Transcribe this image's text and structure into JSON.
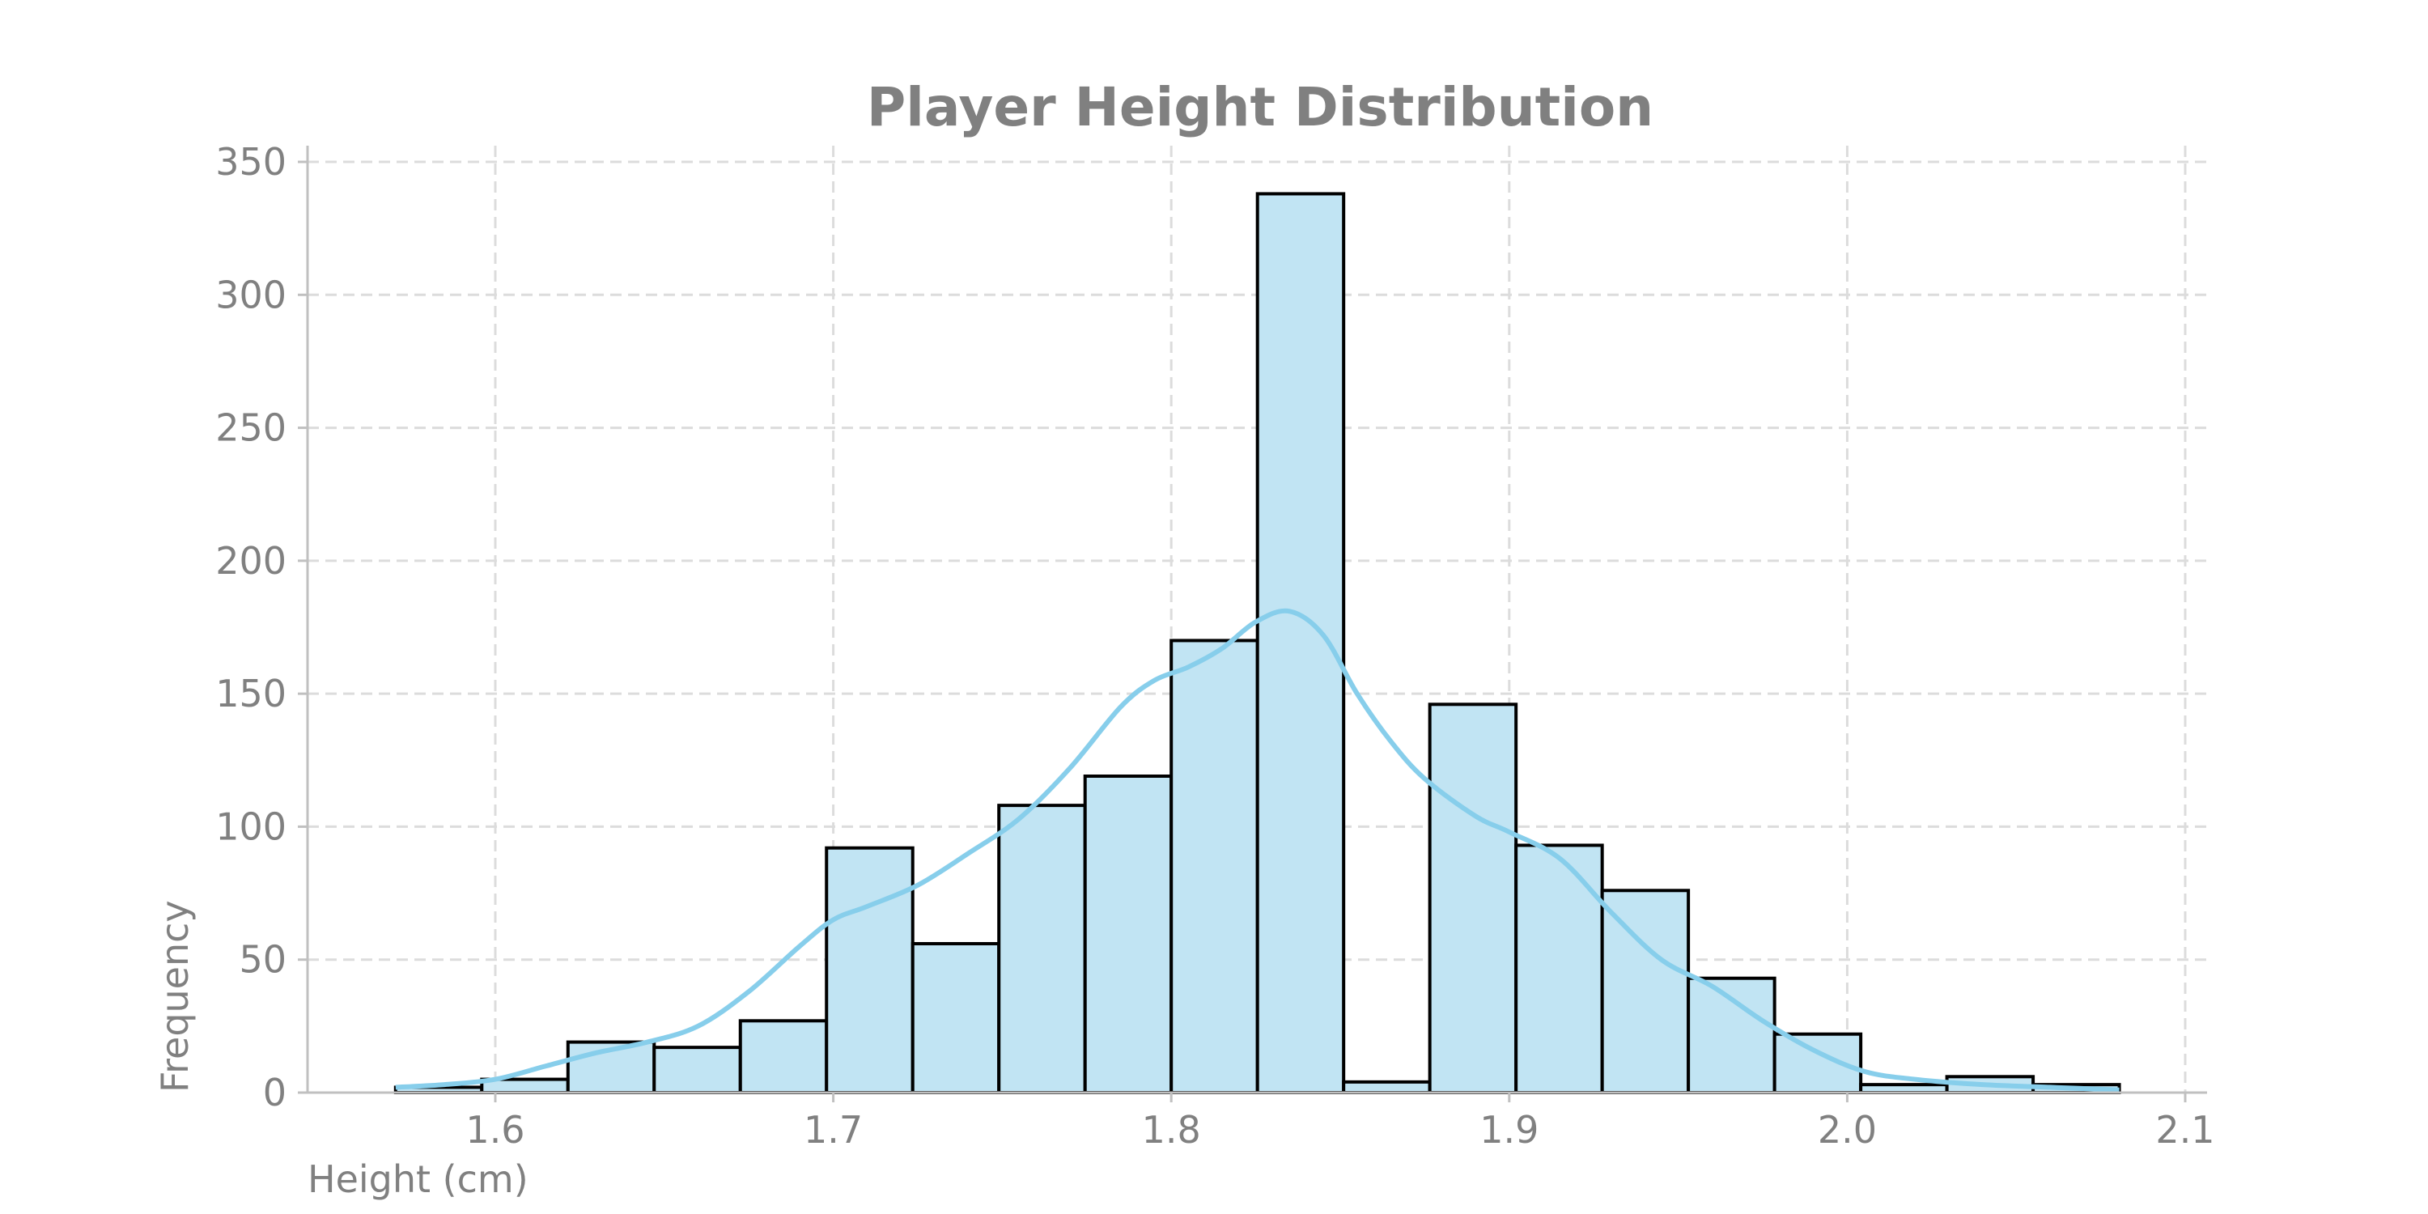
{
  "chart_data": {
    "type": "bar",
    "subtype": "histogram",
    "title": "Player Height Distribution",
    "xlabel": "Height (cm)",
    "ylabel": "Frequency",
    "xlim": [
      1.545,
      2.105
    ],
    "ylim": [
      0,
      350
    ],
    "xticks": [
      1.6,
      1.7,
      1.8,
      1.9,
      2.0,
      2.1
    ],
    "xtick_labels": [
      "1.6",
      "1.7",
      "1.8",
      "1.9",
      "2.0",
      "2.1"
    ],
    "yticks": [
      0,
      50,
      100,
      150,
      200,
      250,
      300,
      350
    ],
    "ytick_labels": [
      "0",
      "50",
      "100",
      "150",
      "200",
      "250",
      "300",
      "350"
    ],
    "grid": true,
    "bins": [
      {
        "start": 1.5705,
        "end": 1.596,
        "count": 2
      },
      {
        "start": 1.596,
        "end": 1.6215,
        "count": 5
      },
      {
        "start": 1.6215,
        "end": 1.647,
        "count": 19
      },
      {
        "start": 1.647,
        "end": 1.6725,
        "count": 17
      },
      {
        "start": 1.6725,
        "end": 1.698,
        "count": 27
      },
      {
        "start": 1.698,
        "end": 1.7235,
        "count": 92
      },
      {
        "start": 1.7235,
        "end": 1.749,
        "count": 56
      },
      {
        "start": 1.749,
        "end": 1.7745,
        "count": 108
      },
      {
        "start": 1.7745,
        "end": 1.8,
        "count": 119
      },
      {
        "start": 1.8,
        "end": 1.8255,
        "count": 170
      },
      {
        "start": 1.8255,
        "end": 1.851,
        "count": 338
      },
      {
        "start": 1.851,
        "end": 1.8765,
        "count": 4
      },
      {
        "start": 1.8765,
        "end": 1.902,
        "count": 146
      },
      {
        "start": 1.902,
        "end": 1.9275,
        "count": 93
      },
      {
        "start": 1.9275,
        "end": 1.953,
        "count": 76
      },
      {
        "start": 1.953,
        "end": 1.9785,
        "count": 43
      },
      {
        "start": 1.9785,
        "end": 2.004,
        "count": 22
      },
      {
        "start": 2.004,
        "end": 2.0295,
        "count": 3
      },
      {
        "start": 2.0295,
        "end": 2.055,
        "count": 6
      },
      {
        "start": 2.055,
        "end": 2.0805,
        "count": 3
      }
    ],
    "kde": {
      "x": [
        1.5705,
        1.585,
        1.6,
        1.615,
        1.63,
        1.645,
        1.66,
        1.675,
        1.69,
        1.7,
        1.71,
        1.725,
        1.74,
        1.755,
        1.77,
        1.785,
        1.795,
        1.805,
        1.815,
        1.825,
        1.835,
        1.845,
        1.855,
        1.865,
        1.875,
        1.89,
        1.9,
        1.915,
        1.93,
        1.945,
        1.96,
        1.975,
        1.99,
        2.005,
        2.02,
        2.04,
        2.06,
        2.0805
      ],
      "y": [
        2,
        3,
        5,
        10,
        15,
        19,
        25,
        38,
        55,
        65,
        70,
        78,
        90,
        103,
        122,
        145,
        155,
        160,
        167,
        177,
        181,
        172,
        150,
        132,
        118,
        104,
        98,
        88,
        68,
        50,
        40,
        27,
        16,
        8,
        5,
        3,
        2,
        1
      ]
    },
    "colors": {
      "bar_fill": "#c1e4f3",
      "bar_edge": "#000000",
      "kde_line": "#87ceeb",
      "text": "#808080",
      "grid": "#dcdcdc"
    }
  }
}
